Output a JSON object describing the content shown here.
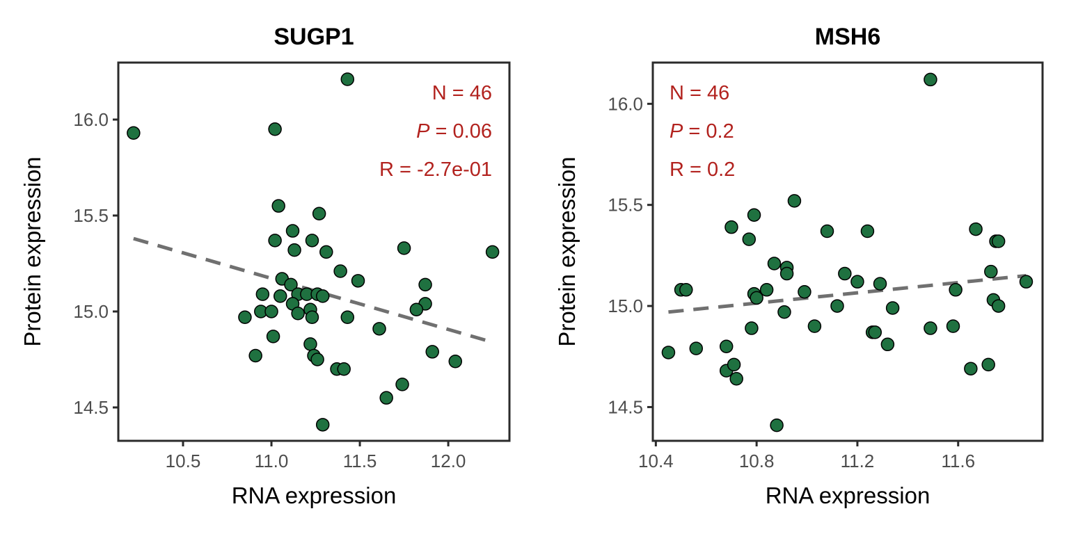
{
  "chart_data": [
    {
      "type": "scatter",
      "title": "SUGP1",
      "xlabel": "RNA expression",
      "ylabel": "Protein expression",
      "xlim": [
        10.134,
        12.346
      ],
      "ylim": [
        14.326,
        16.297
      ],
      "xticks": [
        10.5,
        11.0,
        11.5,
        12.0
      ],
      "xtick_labels": [
        "10.5",
        "11.0",
        "11.5",
        "12.0"
      ],
      "yticks": [
        14.5,
        15.0,
        15.5,
        16.0
      ],
      "ytick_labels": [
        "14.5",
        "15.0",
        "15.5",
        "16.0"
      ],
      "annotations": {
        "n": "N = 46",
        "p_label": "P",
        "p_value": " = 0.06",
        "r": "R = -2.7e-01",
        "align": "top-right"
      },
      "trend": {
        "x": [
          10.22,
          12.25
        ],
        "y": [
          15.38,
          14.84
        ]
      },
      "points": {
        "x": [
          10.22,
          11.43,
          11.02,
          11.04,
          11.27,
          11.02,
          11.12,
          11.13,
          11.23,
          11.31,
          11.75,
          12.25,
          11.39,
          11.49,
          11.06,
          11.11,
          11.87,
          10.95,
          11.05,
          11.15,
          11.2,
          11.12,
          11.26,
          11.29,
          11.87,
          11.82,
          10.94,
          11.0,
          11.22,
          11.15,
          10.85,
          11.23,
          11.43,
          11.61,
          11.01,
          11.22,
          10.91,
          11.24,
          11.26,
          11.91,
          11.37,
          11.41,
          12.04,
          11.74,
          11.65,
          11.29
        ],
        "y": [
          15.93,
          16.21,
          15.95,
          15.55,
          15.51,
          15.37,
          15.42,
          15.32,
          15.37,
          15.31,
          15.33,
          15.31,
          15.21,
          15.16,
          15.17,
          15.14,
          15.14,
          15.09,
          15.08,
          15.09,
          15.09,
          15.04,
          15.09,
          15.08,
          15.04,
          15.01,
          15.0,
          15.0,
          15.01,
          14.99,
          14.97,
          14.97,
          14.97,
          14.91,
          14.87,
          14.83,
          14.77,
          14.77,
          14.75,
          14.79,
          14.7,
          14.7,
          14.74,
          14.62,
          14.55,
          14.41
        ]
      }
    },
    {
      "type": "scatter",
      "title": "MSH6",
      "xlabel": "RNA expression",
      "ylabel": "Protein expression",
      "xlim": [
        10.388,
        11.935
      ],
      "ylim": [
        14.333,
        16.204
      ],
      "xticks": [
        10.4,
        10.8,
        11.2,
        11.6
      ],
      "xtick_labels": [
        "10.4",
        "10.8",
        "11.2",
        "11.6"
      ],
      "yticks": [
        14.5,
        15.0,
        15.5,
        16.0
      ],
      "ytick_labels": [
        "14.5",
        "15.0",
        "15.5",
        "16.0"
      ],
      "annotations": {
        "n": "N = 46",
        "p_label": "P",
        "p_value": " = 0.2",
        "r": "R = 0.2",
        "align": "top-left"
      },
      "trend": {
        "x": [
          10.45,
          11.87
        ],
        "y": [
          14.97,
          15.15
        ]
      },
      "points": {
        "x": [
          11.49,
          10.95,
          10.79,
          10.7,
          10.77,
          11.08,
          11.24,
          11.67,
          11.75,
          11.76,
          10.87,
          10.92,
          10.92,
          11.15,
          11.2,
          11.29,
          11.73,
          11.87,
          10.5,
          10.52,
          10.79,
          10.8,
          10.84,
          10.99,
          11.59,
          11.12,
          11.34,
          11.74,
          11.76,
          10.91,
          10.78,
          11.03,
          11.49,
          11.58,
          11.26,
          11.27,
          11.32,
          10.45,
          10.56,
          10.68,
          10.68,
          10.71,
          10.72,
          11.65,
          11.72,
          10.88
        ],
        "y": [
          16.12,
          15.52,
          15.45,
          15.39,
          15.33,
          15.37,
          15.37,
          15.38,
          15.32,
          15.32,
          15.21,
          15.19,
          15.16,
          15.16,
          15.12,
          15.11,
          15.17,
          15.12,
          15.08,
          15.08,
          15.06,
          15.04,
          15.08,
          15.07,
          15.08,
          15.0,
          14.99,
          15.03,
          15.0,
          14.97,
          14.89,
          14.9,
          14.89,
          14.9,
          14.87,
          14.87,
          14.81,
          14.77,
          14.79,
          14.8,
          14.68,
          14.71,
          14.64,
          14.69,
          14.71,
          14.41
        ]
      }
    }
  ],
  "colors": {
    "point_fill": "#1f7140",
    "point_stroke": "#000000",
    "trend": "#707070",
    "annotation": "#b2221e",
    "axis": "#2b2b2b"
  }
}
